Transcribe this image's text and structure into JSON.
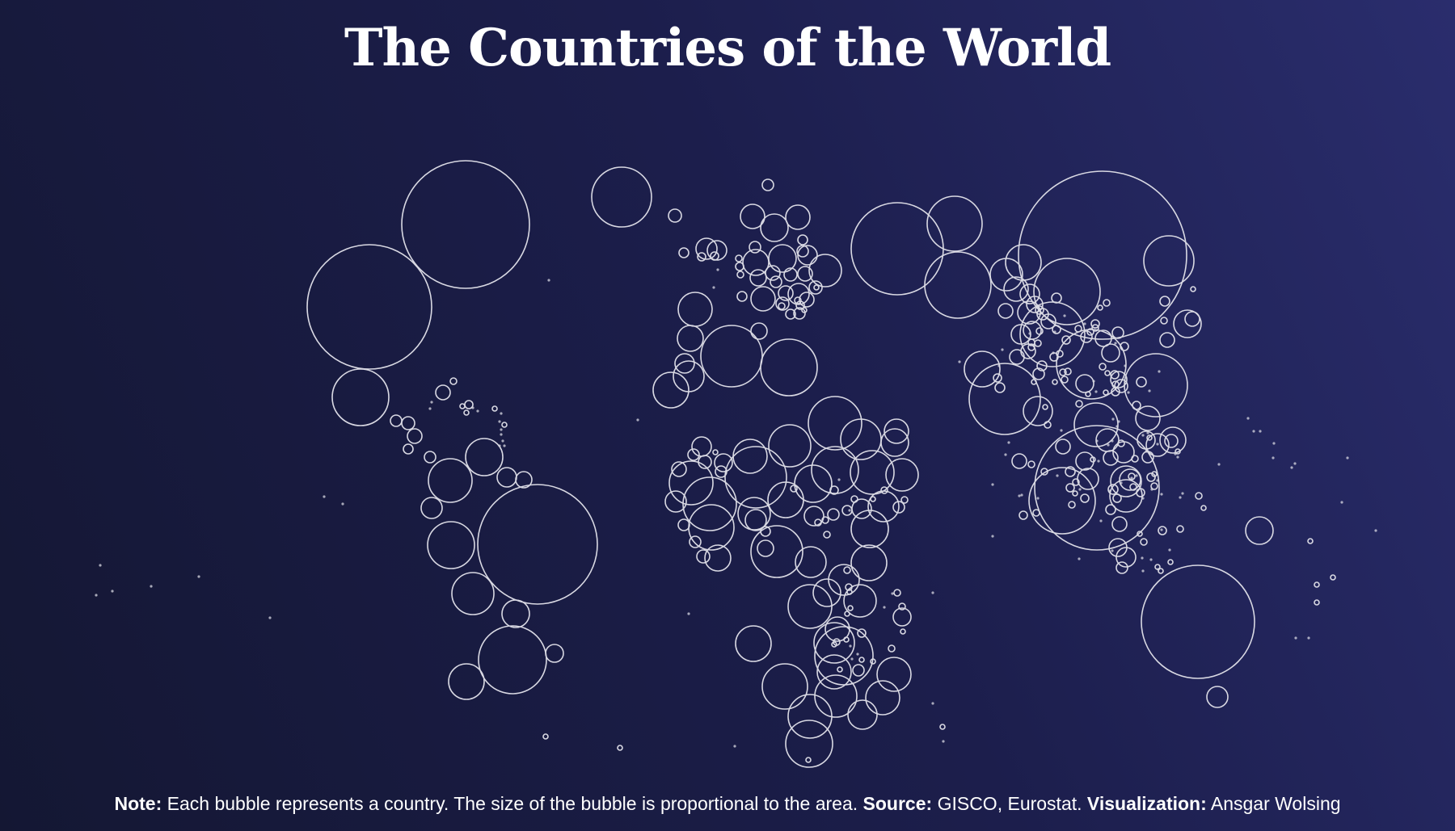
{
  "title": "The Countries of the World",
  "note": {
    "note_label": "Note:",
    "note_text": " Each bubble represents a country. The size of the bubble is proportional to the area. ",
    "source_label": "Source:",
    "source_text": " GISCO, Eurostat. ",
    "visualization_label": "Visualization:",
    "visualization_text": " Ansgar Wolsing"
  },
  "colors": {
    "background_start": "#141733",
    "background_end": "#2a2d6d",
    "bubble_stroke": "#d9d9e3",
    "text": "#ffffff"
  }
}
